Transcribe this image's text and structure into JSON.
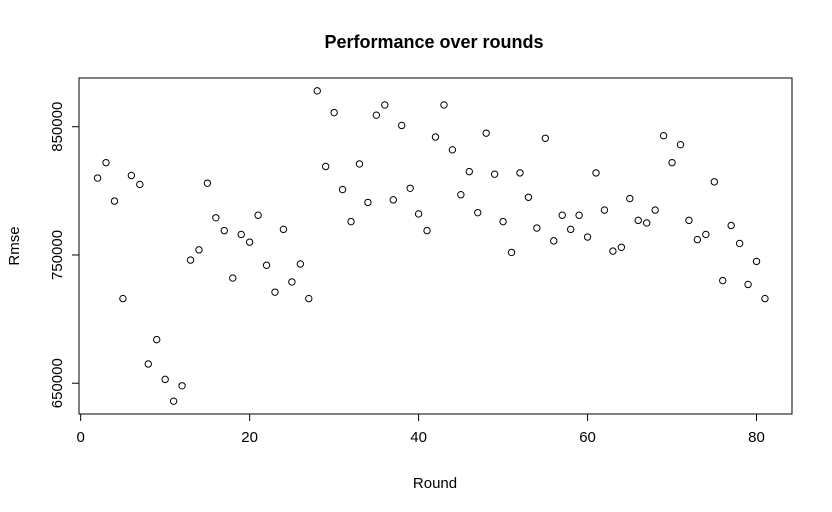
{
  "chart_data": {
    "type": "scatter",
    "title": "Performance over rounds",
    "xlabel": "Round",
    "ylabel": "Rmse",
    "xlim": [
      -0.2,
      84.2
    ],
    "ylim": [
      626000,
      888000
    ],
    "xticks": [
      0,
      20,
      40,
      60,
      80
    ],
    "yticks": [
      650000,
      750000,
      850000
    ],
    "xtick_labels": [
      "0",
      "20",
      "40",
      "60",
      "80"
    ],
    "ytick_labels": [
      "650000",
      "750000",
      "850000"
    ],
    "grid": false,
    "marker": "open-circle",
    "x": [
      2,
      3,
      4,
      5,
      6,
      7,
      8,
      9,
      10,
      11,
      12,
      13,
      14,
      15,
      16,
      17,
      18,
      19,
      20,
      21,
      22,
      23,
      24,
      25,
      26,
      27,
      28,
      29,
      30,
      31,
      32,
      33,
      34,
      35,
      36,
      37,
      38,
      39,
      40,
      41,
      42,
      43,
      44,
      45,
      46,
      47,
      48,
      49,
      50,
      51,
      52,
      53,
      54,
      55,
      56,
      57,
      58,
      59,
      60,
      61,
      62,
      63,
      64,
      65,
      66,
      67,
      68,
      69,
      70,
      71,
      72,
      73,
      74,
      75,
      76,
      77,
      78,
      79,
      80,
      81
    ],
    "y": [
      810000,
      822000,
      792000,
      716000,
      812000,
      805000,
      665000,
      684000,
      653000,
      636000,
      648000,
      746000,
      754000,
      806000,
      779000,
      769000,
      732000,
      766000,
      760000,
      781000,
      742000,
      721000,
      770000,
      729000,
      743000,
      716000,
      878000,
      819000,
      861000,
      801000,
      776000,
      821000,
      791000,
      859000,
      867000,
      793000,
      851000,
      802000,
      782000,
      769000,
      842000,
      867000,
      832000,
      797000,
      815000,
      783000,
      845000,
      813000,
      776000,
      752000,
      814000,
      795000,
      771000,
      841000,
      761000,
      781000,
      770000,
      781000,
      764000,
      814000,
      785000,
      753000,
      756000,
      794000,
      777000,
      775000,
      785000,
      843000,
      822000,
      836000,
      777000,
      762000,
      766000,
      807000,
      730000,
      773000,
      759000,
      727000,
      745000,
      716000
    ]
  }
}
